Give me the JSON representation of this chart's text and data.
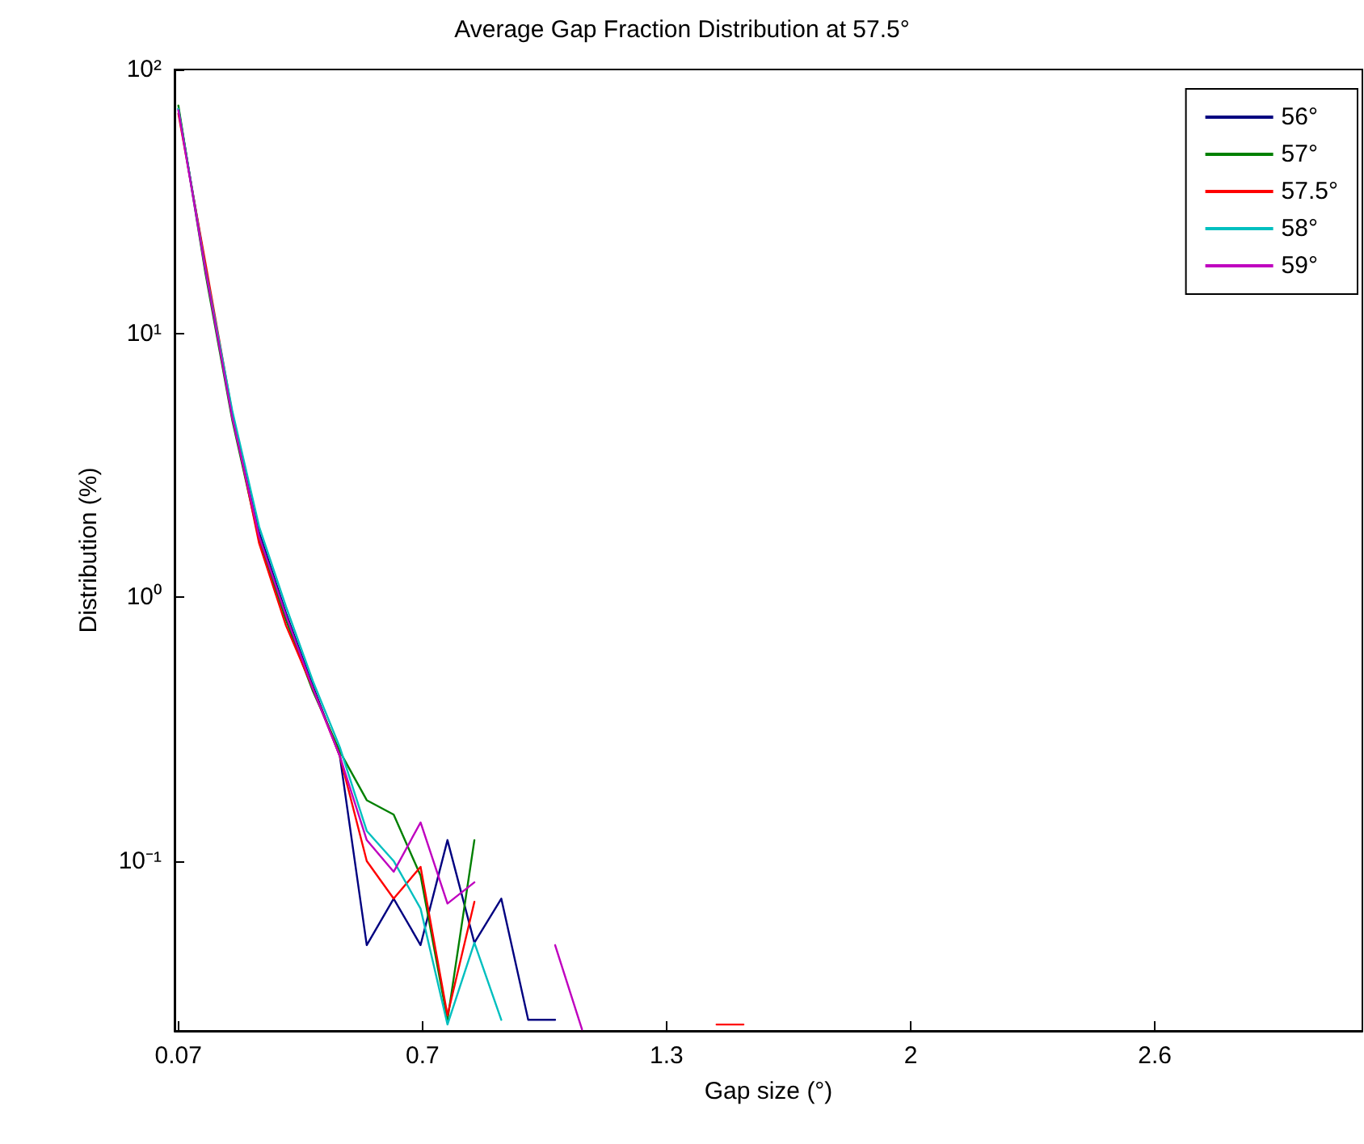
{
  "chart_data": {
    "type": "line",
    "title": "Average Gap Fraction Distribution at 57.5°",
    "xlabel": "Gap size (°)",
    "ylabel": "Distribution (%)",
    "x": [
      0.07,
      0.14,
      0.21,
      0.28,
      0.35,
      0.42,
      0.49,
      0.56,
      0.63,
      0.7,
      0.77,
      0.84,
      0.91,
      0.98,
      1.05,
      1.12,
      1.19,
      1.26,
      1.33,
      1.4,
      1.47,
      1.54
    ],
    "series": [
      {
        "name": "56°",
        "color": "#000080",
        "values": [
          71,
          18,
          4.9,
          1.76,
          0.87,
          0.46,
          0.25,
          0.048,
          0.072,
          0.048,
          0.12,
          0.049,
          0.072,
          0.025,
          0.025,
          null,
          null,
          null,
          null,
          null,
          null,
          null
        ]
      },
      {
        "name": "57°",
        "color": "#008000",
        "values": [
          73,
          17,
          4.7,
          1.65,
          0.82,
          0.44,
          0.26,
          0.17,
          0.15,
          0.088,
          0.025,
          0.12,
          null,
          null,
          null,
          null,
          null,
          null,
          null,
          null,
          null,
          null
        ]
      },
      {
        "name": "57.5°",
        "color": "#ff0000",
        "values": [
          68,
          18.6,
          5.0,
          1.6,
          0.78,
          0.45,
          0.25,
          0.1,
          0.072,
          0.095,
          0.026,
          0.07,
          null,
          null,
          null,
          null,
          null,
          null,
          null,
          null,
          0.024,
          0.024
        ]
      },
      {
        "name": "58°",
        "color": "#00bfbf",
        "values": [
          71,
          17.7,
          5.1,
          1.85,
          0.92,
          0.48,
          0.27,
          0.13,
          0.1,
          0.066,
          0.024,
          0.049,
          0.025,
          null,
          null,
          null,
          null,
          null,
          null,
          null,
          null,
          null
        ]
      },
      {
        "name": "59°",
        "color": "#bf00bf",
        "values": [
          70,
          17.5,
          4.8,
          1.7,
          0.85,
          0.45,
          0.25,
          0.12,
          0.091,
          0.14,
          0.069,
          0.083,
          null,
          null,
          0.048,
          0.023,
          null,
          null,
          null,
          null,
          null,
          null
        ]
      }
    ],
    "log": "y",
    "xlim": [
      0.06,
      3.15
    ],
    "ylim": [
      0.0227,
      100
    ],
    "xticks": [
      {
        "value": 0.07,
        "label": "0.07"
      },
      {
        "value": 0.705,
        "label": "0.7"
      },
      {
        "value": 1.34,
        "label": "1.3"
      },
      {
        "value": 1.975,
        "label": "2"
      },
      {
        "value": 2.61,
        "label": "2.6"
      }
    ],
    "yticks": [
      {
        "value": 0.1,
        "label": "10⁻¹"
      },
      {
        "value": 1,
        "label": "10⁰"
      },
      {
        "value": 10,
        "label": "10¹"
      },
      {
        "value": 100,
        "label": "10²"
      }
    ],
    "legend": "top right",
    "grid": false,
    "marker": "none",
    "line_style": "solid"
  }
}
